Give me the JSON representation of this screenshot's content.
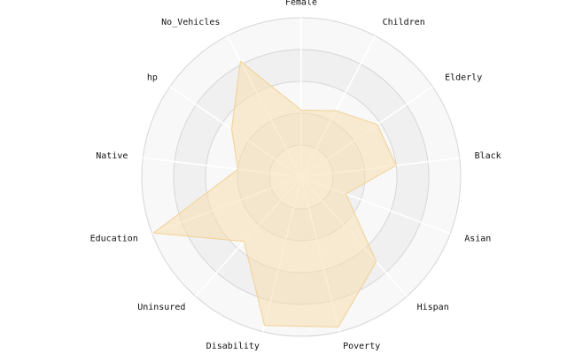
{
  "chart_data": {
    "type": "radar",
    "axes": [
      "Female",
      "Children",
      "Elderly",
      "Black",
      "Asian",
      "Hispan",
      "Poverty",
      "Disability",
      "Uninsured",
      "Education",
      "Native",
      "hp",
      "No_Vehicles"
    ],
    "series": [
      {
        "values": [
          0.42,
          0.47,
          0.58,
          0.6,
          0.3,
          0.71,
          0.97,
          0.96,
          0.54,
          0.99,
          0.4,
          0.53,
          0.82
        ]
      }
    ],
    "rmax": 1.0,
    "ring_count": 5,
    "grid": true,
    "legend": "none",
    "colors": {
      "fill": "#f6deb0",
      "fill_opacity": 0.55,
      "stroke": "#f1d193",
      "ring_fill_a": "#f8f8f8",
      "ring_fill_b": "#f0f0f0",
      "ring_line": "#d6d6d6",
      "spoke": "#ffffff"
    }
  }
}
